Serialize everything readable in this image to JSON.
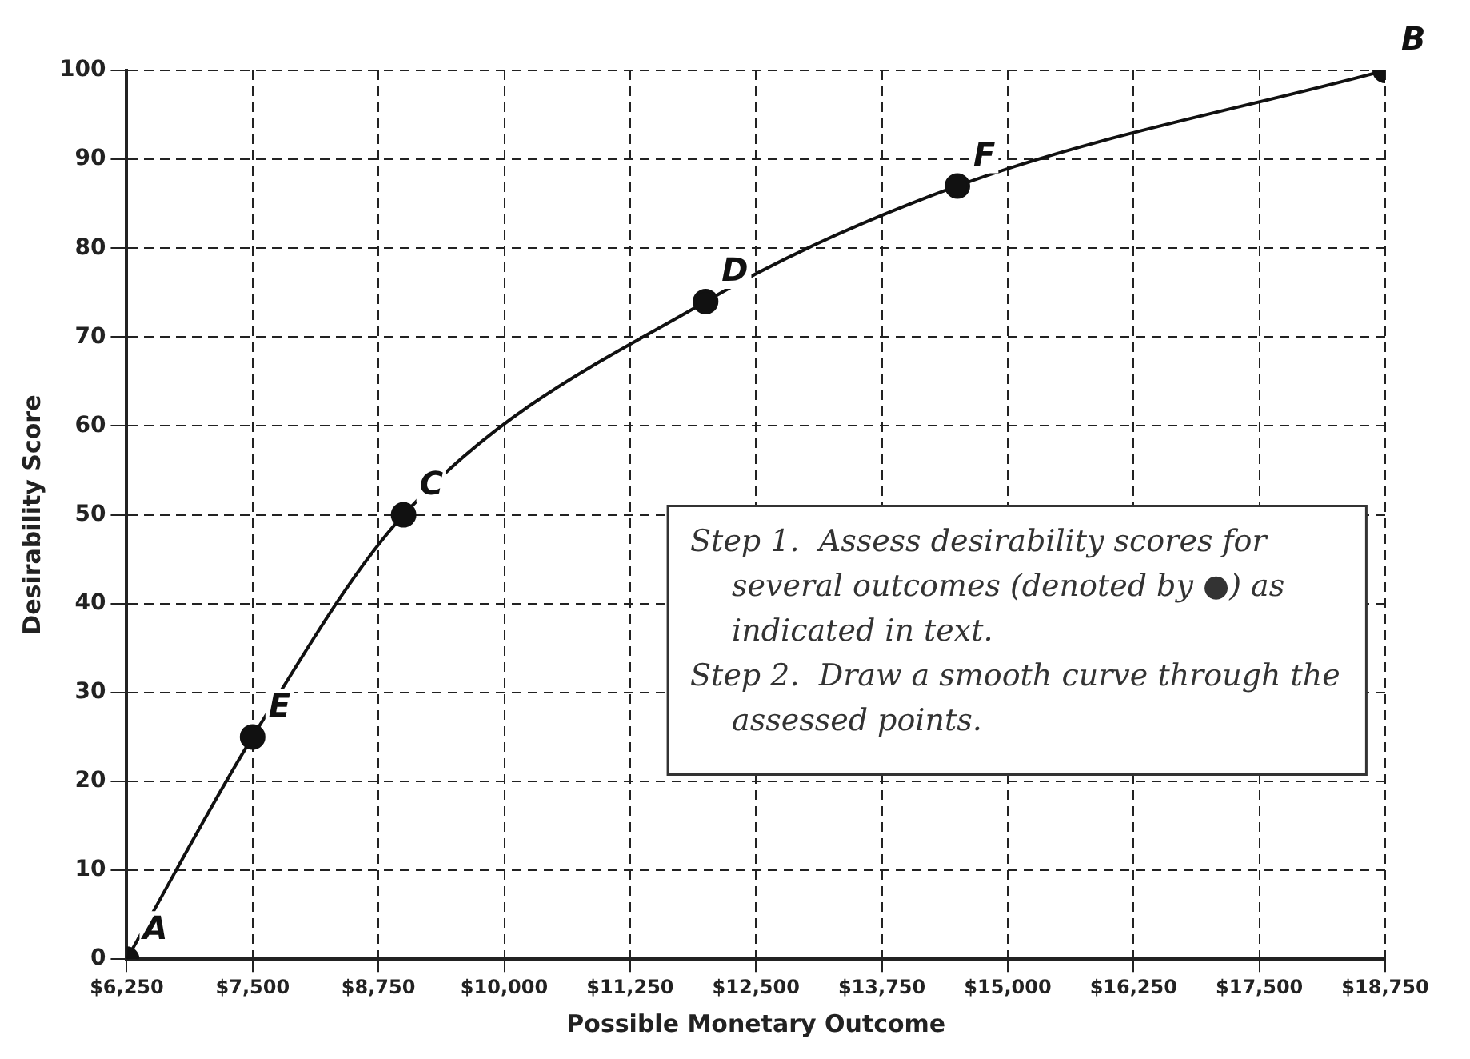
{
  "chart_data": {
    "type": "line",
    "xlabel": "Possible Monetary Outcome",
    "ylabel": "Desirability Score",
    "x": [
      6250,
      7500,
      9000,
      12000,
      14500,
      18750
    ],
    "series": [
      {
        "color": "#111111",
        "values": [
          0,
          25,
          50,
          74,
          87,
          100
        ]
      }
    ],
    "marker": "circle",
    "line_style": "solid",
    "xlim": [
      6250,
      18750
    ],
    "xticks": [
      {
        "value": 6250,
        "label": "$6,250"
      },
      {
        "value": 7500,
        "label": "$7,500"
      },
      {
        "value": 8750,
        "label": "$8,750"
      },
      {
        "value": 10000,
        "label": "$10,000"
      },
      {
        "value": 11250,
        "label": "$11,250"
      },
      {
        "value": 12500,
        "label": "$12,500"
      },
      {
        "value": 13750,
        "label": "$13,750"
      },
      {
        "value": 15000,
        "label": "$15,000"
      },
      {
        "value": 16250,
        "label": "$16,250"
      },
      {
        "value": 17500,
        "label": "$17,500"
      },
      {
        "value": 18750,
        "label": "$18,750"
      }
    ],
    "ylim": [
      0,
      100
    ],
    "yticks": [
      0,
      10,
      20,
      30,
      40,
      50,
      60,
      70,
      80,
      90,
      100
    ],
    "grid": true,
    "legend": false,
    "annotations": [
      {
        "text": "A",
        "x": 6250,
        "y": 0
      },
      {
        "text": "E",
        "x": 7500,
        "y": 25
      },
      {
        "text": "C",
        "x": 9000,
        "y": 50
      },
      {
        "text": "D",
        "x": 12000,
        "y": 74
      },
      {
        "text": "F",
        "x": 14500,
        "y": 87
      },
      {
        "text": "B",
        "x": 18750,
        "y": 100
      },
      "Step 1.  Assess desirability scores for several outcomes (denoted by ●) as indicated in text.",
      "Step 2.  Draw a smooth curve through the assessed points."
    ]
  }
}
